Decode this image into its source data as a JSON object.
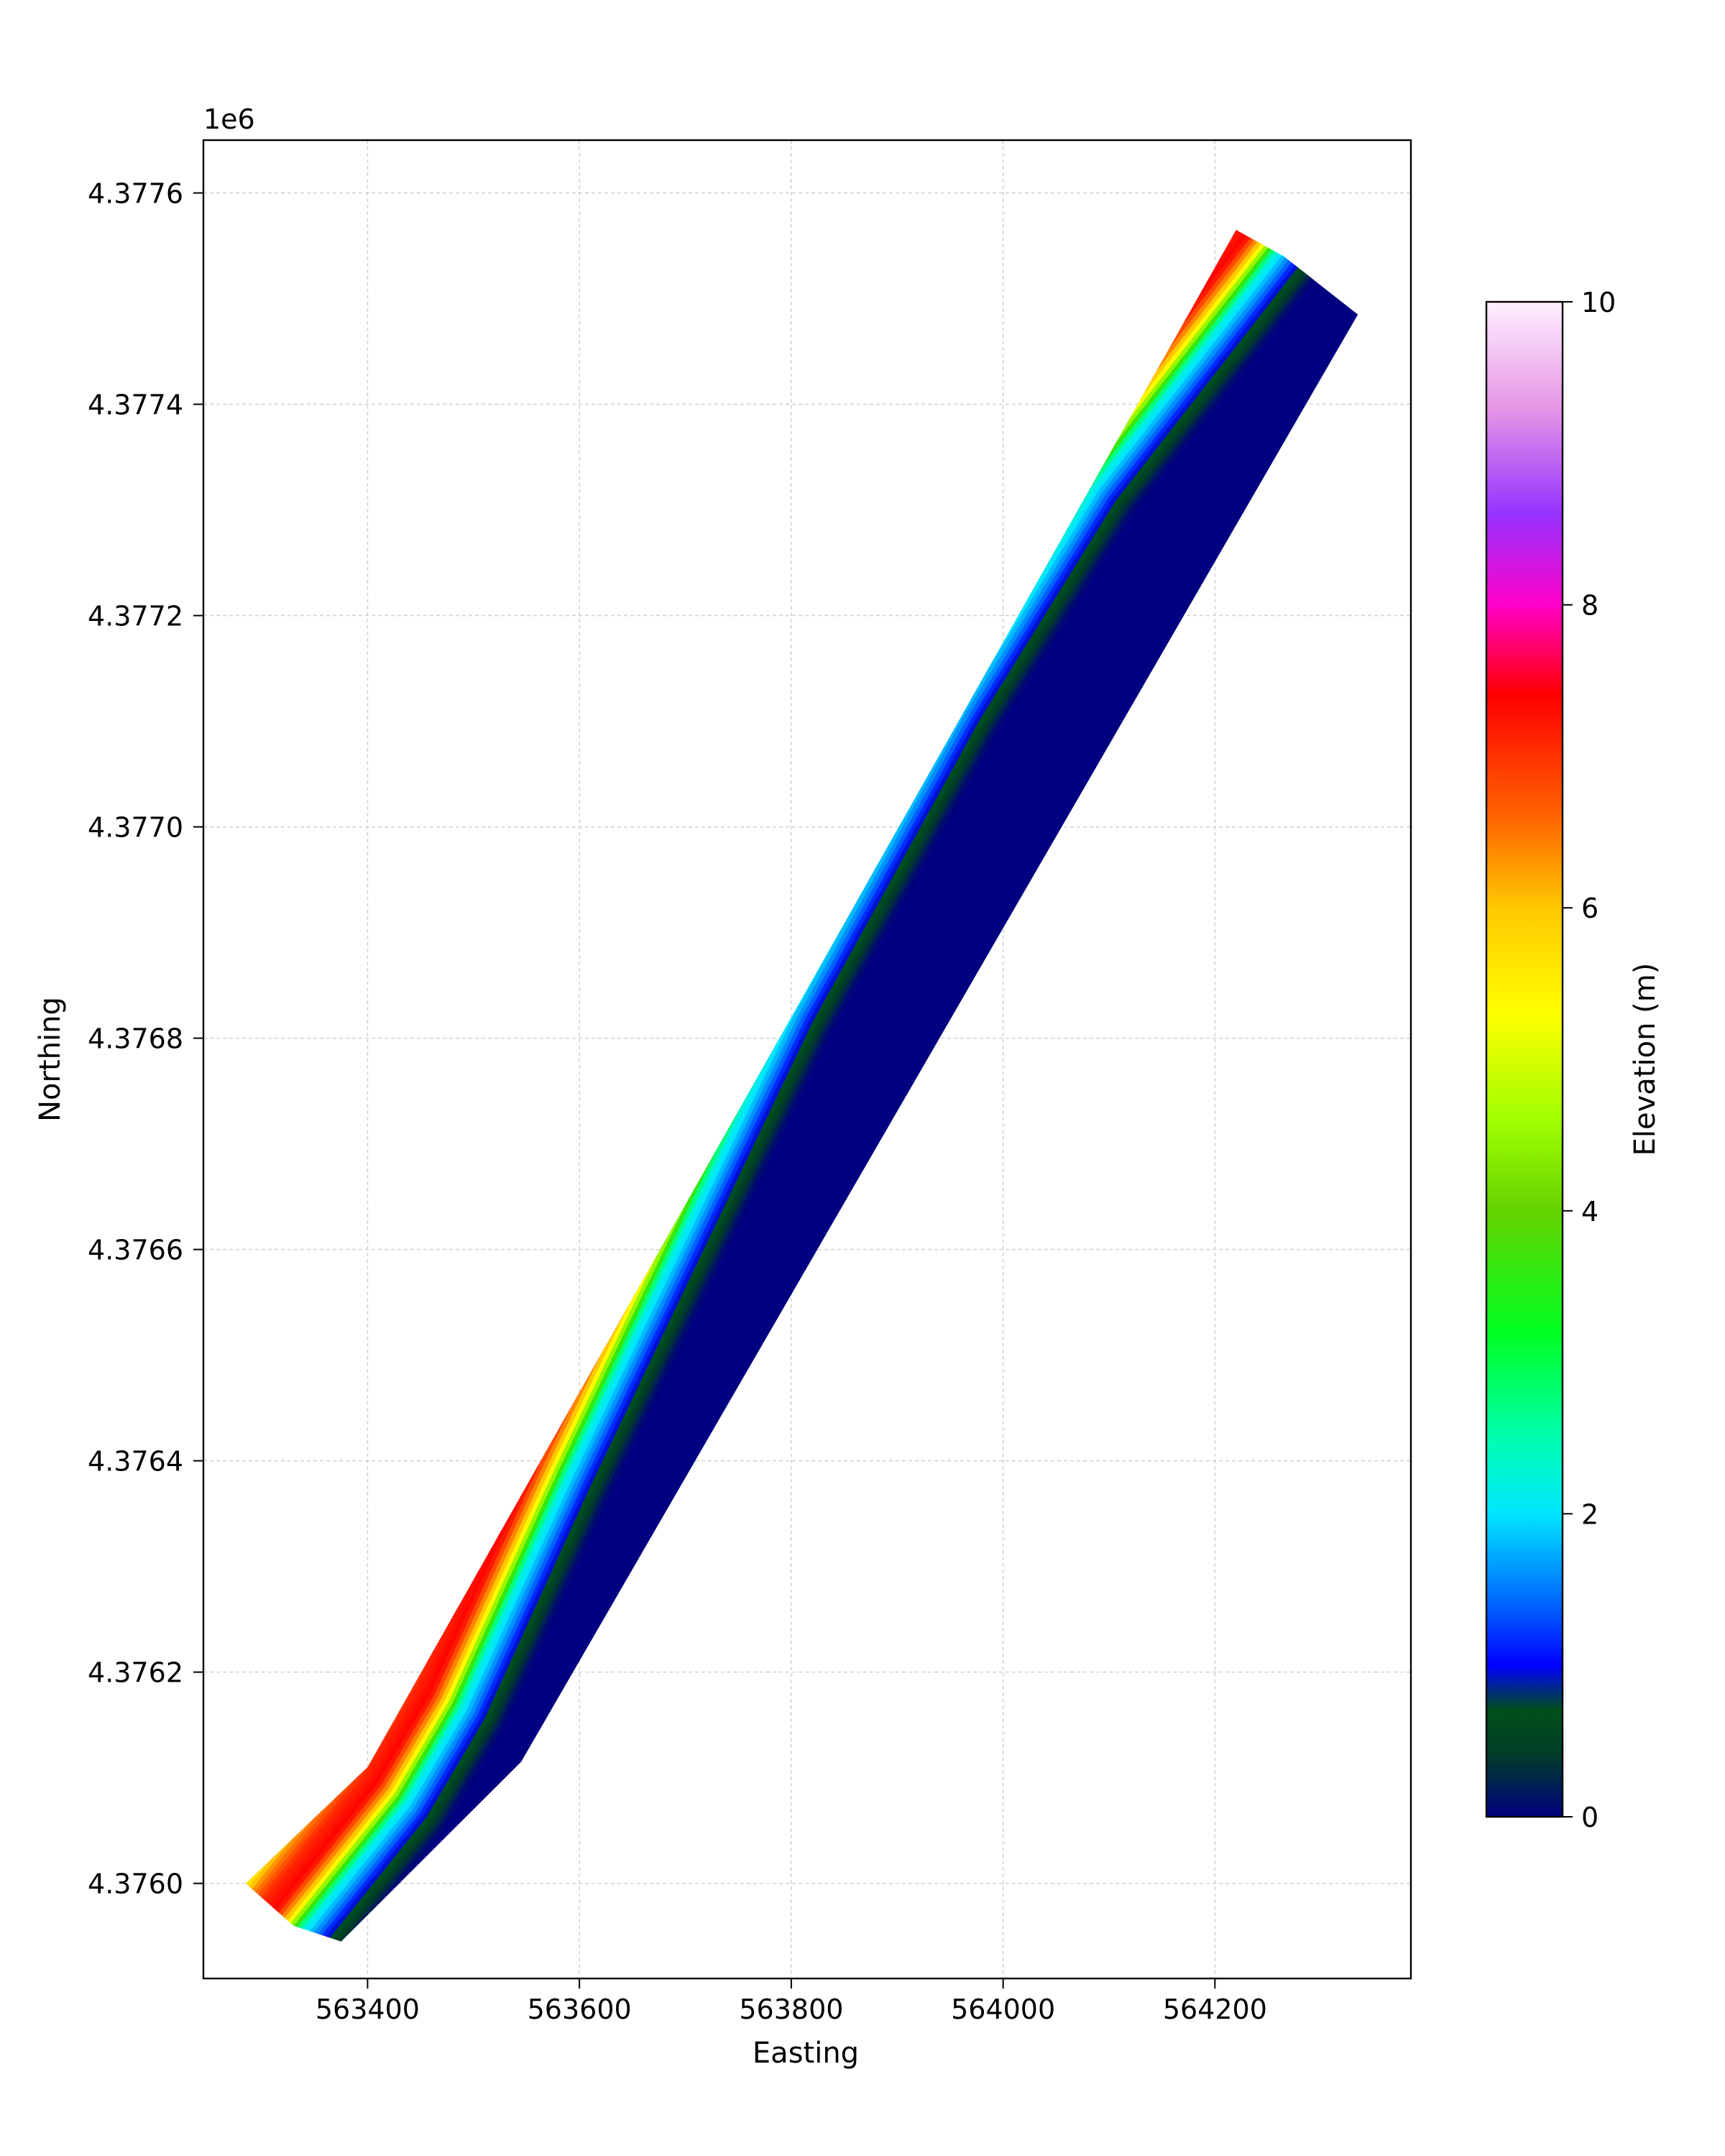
{
  "chart_data": {
    "type": "heatmap",
    "description_type": "raster elevation map",
    "xlabel": "Easting",
    "ylabel": "Northing",
    "y_offset_label": "1e6",
    "xlim": [
      563245,
      564385
    ],
    "ylim": [
      4375910,
      4377650
    ],
    "x_ticks": [
      563400,
      563600,
      563800,
      564000,
      564200
    ],
    "x_tick_labels": [
      "563400",
      "563600",
      "563800",
      "564000",
      "564200"
    ],
    "y_ticks": [
      4376000,
      4376200,
      4376400,
      4376600,
      4376800,
      4377000,
      4377200,
      4377400,
      4377600
    ],
    "y_tick_labels": [
      "4.3760",
      "4.3762",
      "4.3764",
      "4.3766",
      "4.3768",
      "4.3770",
      "4.3772",
      "4.3774",
      "4.3776"
    ],
    "grid": true,
    "colorbar": {
      "label": "Elevation (m)",
      "range": [
        0,
        10
      ],
      "ticks": [
        0,
        2,
        4,
        6,
        8,
        10
      ],
      "tick_labels": [
        "0",
        "2",
        "4",
        "6",
        "8",
        "10"
      ],
      "colormap_stops": [
        {
          "value": 0.0,
          "color": "#000080"
        },
        {
          "value": 0.4,
          "color": "#003c2a"
        },
        {
          "value": 0.7,
          "color": "#005018"
        },
        {
          "value": 1.0,
          "color": "#0000ff"
        },
        {
          "value": 1.4,
          "color": "#0064ff"
        },
        {
          "value": 2.0,
          "color": "#00e6ff"
        },
        {
          "value": 2.5,
          "color": "#00ffb0"
        },
        {
          "value": 3.2,
          "color": "#00ff20"
        },
        {
          "value": 4.0,
          "color": "#64d200"
        },
        {
          "value": 4.6,
          "color": "#a0ff00"
        },
        {
          "value": 5.3,
          "color": "#ffff00"
        },
        {
          "value": 6.0,
          "color": "#ffc800"
        },
        {
          "value": 6.6,
          "color": "#ff6400"
        },
        {
          "value": 7.4,
          "color": "#ff0000"
        },
        {
          "value": 8.0,
          "color": "#ff00c8"
        },
        {
          "value": 8.6,
          "color": "#9632ff"
        },
        {
          "value": 9.3,
          "color": "#e696e6"
        },
        {
          "value": 10.0,
          "color": "#fff0ff"
        }
      ]
    },
    "surveyed_strip": {
      "outline": [
        [
          563285,
          4376000
        ],
        [
          563400,
          4376110
        ],
        [
          564220,
          4377565
        ],
        [
          564265,
          4377540
        ],
        [
          564335,
          4377485
        ],
        [
          563545,
          4376115
        ],
        [
          563375,
          4375945
        ],
        [
          563330,
          4375960
        ]
      ],
      "dune_crest_line": [
        [
          563330,
          4375995
        ],
        [
          563410,
          4376095
        ],
        [
          563460,
          4376180
        ],
        [
          563560,
          4376400
        ],
        [
          563770,
          4376840
        ],
        [
          563930,
          4377130
        ],
        [
          564060,
          4377340
        ],
        [
          564200,
          4377520
        ]
      ]
    },
    "profile_across_strip": {
      "offset_m": [
        -75,
        -60,
        -45,
        -30,
        -15,
        0,
        15,
        30,
        45,
        60,
        75
      ],
      "elevation_m": [
        0.3,
        2.4,
        4.8,
        6.2,
        7.1,
        7.4,
        5.8,
        2.3,
        1.5,
        0.6,
        0.0
      ]
    }
  }
}
